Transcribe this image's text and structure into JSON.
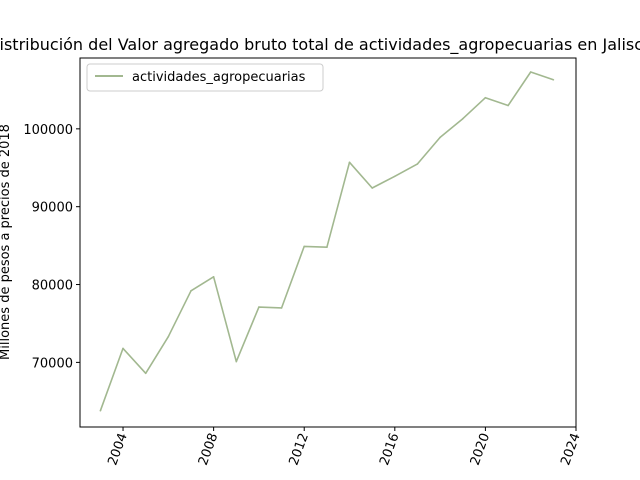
{
  "chart_data": {
    "type": "line",
    "title": "Distribución del Valor agregado bruto total de actividades_agropecuarias en Jalisco",
    "xlabel": "",
    "ylabel": "Millones de pesos a precios de 2018",
    "xlim": [
      2002.1,
      2024
    ],
    "ylim": [
      61700,
      109100
    ],
    "x_ticks": [
      2004,
      2008,
      2012,
      2016,
      2020,
      2024
    ],
    "x_tick_labels": [
      "2004",
      "2008",
      "2012",
      "2016",
      "2020",
      "2024"
    ],
    "y_ticks": [
      70000,
      80000,
      90000,
      100000
    ],
    "y_tick_labels": [
      "70000",
      "80000",
      "90000",
      "100000"
    ],
    "grid": false,
    "legend_position": "top-left",
    "series": [
      {
        "name": "actividades_agropecuarias",
        "color": "#a2b890",
        "x": [
          2003,
          2004,
          2005,
          2006,
          2007,
          2008,
          2009,
          2010,
          2011,
          2012,
          2013,
          2014,
          2015,
          2016,
          2017,
          2018,
          2019,
          2020,
          2021,
          2022,
          2023
        ],
        "values": [
          63800,
          71800,
          68600,
          73300,
          79200,
          81000,
          70100,
          77100,
          77000,
          84900,
          84800,
          95700,
          92400,
          93900,
          95500,
          98900,
          101300,
          104000,
          103000,
          107300,
          106300
        ]
      }
    ]
  }
}
